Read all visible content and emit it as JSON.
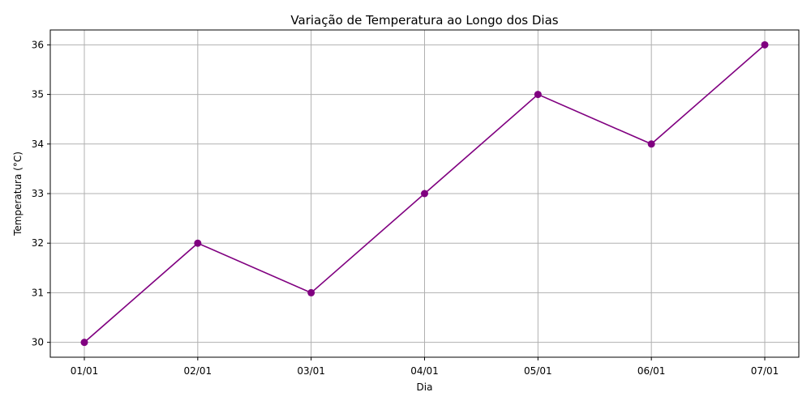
{
  "chart_data": {
    "type": "line",
    "title": "Variação de Temperatura ao Longo dos Dias",
    "xlabel": "Dia",
    "ylabel": "Temperatura (°C)",
    "categories": [
      "01/01",
      "02/01",
      "03/01",
      "04/01",
      "05/01",
      "06/01",
      "07/01"
    ],
    "series": [
      {
        "values": [
          30,
          32,
          31,
          33,
          35,
          34,
          36
        ]
      }
    ],
    "yticks": [
      30,
      31,
      32,
      33,
      34,
      35,
      36
    ],
    "ylim": [
      29.7,
      36.3
    ],
    "grid": true,
    "marker": "circle",
    "color": "#800080"
  }
}
